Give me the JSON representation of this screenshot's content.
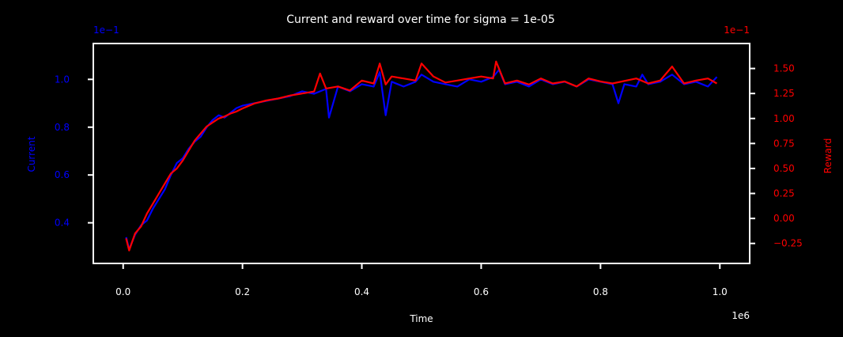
{
  "chart_data": {
    "type": "line",
    "title": "Current and reward over time for sigma = 1e-05",
    "xlabel": "Time",
    "x_offset_label": "1e6",
    "xlim": [
      -0.05,
      1.05
    ],
    "x_ticks": [
      0.0,
      0.2,
      0.4,
      0.6,
      0.8,
      1.0
    ],
    "x_tick_labels": [
      "0.0",
      "0.2",
      "0.4",
      "0.6",
      "0.8",
      "1.0"
    ],
    "left_axis": {
      "label": "Current",
      "offset_label": "1e−1",
      "color": "#0000ff",
      "ylim": [
        0.23,
        1.15
      ],
      "ticks": [
        0.4,
        0.6,
        0.8,
        1.0
      ],
      "tick_labels": [
        "0.4",
        "0.6",
        "0.8",
        "1.0"
      ]
    },
    "right_axis": {
      "label": "Reward",
      "offset_label": "1e−1",
      "color": "#ff0000",
      "ylim": [
        -0.45,
        1.75
      ],
      "ticks": [
        -0.25,
        0.0,
        0.25,
        0.5,
        0.75,
        1.0,
        1.25,
        1.5
      ],
      "tick_labels": [
        "−0.25",
        "0.00",
        "0.25",
        "0.50",
        "0.75",
        "1.00",
        "1.25",
        "1.50"
      ]
    },
    "series": [
      {
        "axis": "left",
        "color": "#0000ff",
        "x": [
          0.005,
          0.01,
          0.02,
          0.03,
          0.04,
          0.05,
          0.06,
          0.07,
          0.08,
          0.09,
          0.1,
          0.11,
          0.12,
          0.13,
          0.14,
          0.15,
          0.16,
          0.17,
          0.18,
          0.19,
          0.2,
          0.22,
          0.24,
          0.26,
          0.28,
          0.3,
          0.32,
          0.34,
          0.345,
          0.36,
          0.38,
          0.4,
          0.42,
          0.43,
          0.44,
          0.45,
          0.47,
          0.49,
          0.5,
          0.52,
          0.54,
          0.56,
          0.58,
          0.6,
          0.62,
          0.63,
          0.64,
          0.66,
          0.68,
          0.7,
          0.72,
          0.74,
          0.76,
          0.78,
          0.8,
          0.82,
          0.83,
          0.84,
          0.86,
          0.87,
          0.88,
          0.9,
          0.92,
          0.94,
          0.96,
          0.98,
          0.995
        ],
        "y": [
          0.34,
          0.29,
          0.35,
          0.39,
          0.41,
          0.46,
          0.5,
          0.54,
          0.6,
          0.65,
          0.67,
          0.71,
          0.74,
          0.76,
          0.8,
          0.83,
          0.85,
          0.84,
          0.86,
          0.88,
          0.89,
          0.9,
          0.91,
          0.92,
          0.93,
          0.95,
          0.94,
          0.96,
          0.84,
          0.97,
          0.95,
          0.98,
          0.97,
          1.03,
          0.85,
          0.99,
          0.97,
          0.99,
          1.02,
          0.99,
          0.98,
          0.97,
          1.0,
          0.99,
          1.01,
          1.04,
          0.98,
          0.99,
          0.97,
          1.0,
          0.98,
          0.99,
          0.97,
          1.0,
          0.99,
          0.98,
          0.9,
          0.98,
          0.97,
          1.02,
          0.98,
          0.99,
          1.02,
          0.98,
          0.99,
          0.97,
          1.01
        ]
      },
      {
        "axis": "right",
        "color": "#ff0000",
        "x": [
          0.005,
          0.01,
          0.02,
          0.03,
          0.04,
          0.05,
          0.06,
          0.07,
          0.08,
          0.09,
          0.1,
          0.11,
          0.12,
          0.13,
          0.14,
          0.15,
          0.16,
          0.17,
          0.18,
          0.19,
          0.2,
          0.22,
          0.24,
          0.26,
          0.28,
          0.3,
          0.32,
          0.33,
          0.34,
          0.36,
          0.38,
          0.4,
          0.42,
          0.43,
          0.44,
          0.45,
          0.47,
          0.49,
          0.5,
          0.52,
          0.54,
          0.56,
          0.58,
          0.6,
          0.62,
          0.625,
          0.64,
          0.66,
          0.68,
          0.7,
          0.72,
          0.74,
          0.76,
          0.78,
          0.8,
          0.82,
          0.86,
          0.88,
          0.9,
          0.92,
          0.94,
          0.96,
          0.98,
          0.995
        ],
        "y": [
          -0.2,
          -0.32,
          -0.15,
          -0.08,
          0.05,
          0.15,
          0.25,
          0.35,
          0.45,
          0.5,
          0.58,
          0.68,
          0.78,
          0.85,
          0.92,
          0.96,
          1.0,
          1.02,
          1.05,
          1.07,
          1.1,
          1.15,
          1.18,
          1.2,
          1.23,
          1.25,
          1.27,
          1.45,
          1.3,
          1.32,
          1.28,
          1.38,
          1.35,
          1.55,
          1.34,
          1.42,
          1.4,
          1.38,
          1.55,
          1.42,
          1.36,
          1.38,
          1.4,
          1.42,
          1.4,
          1.57,
          1.35,
          1.38,
          1.34,
          1.4,
          1.35,
          1.37,
          1.32,
          1.4,
          1.37,
          1.35,
          1.4,
          1.35,
          1.38,
          1.52,
          1.35,
          1.38,
          1.4,
          1.35
        ]
      }
    ]
  }
}
